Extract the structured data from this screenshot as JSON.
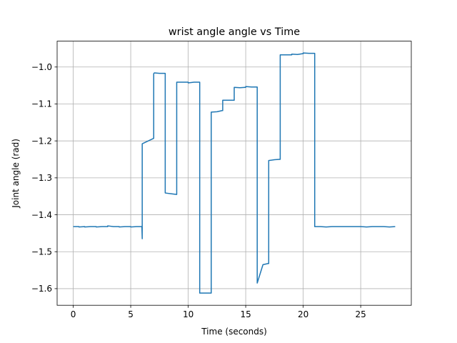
{
  "chart_data": {
    "type": "line",
    "title": "wrist angle angle vs Time",
    "xlabel": "Time (seconds)",
    "ylabel": "Joint angle (rad)",
    "xlim": [
      -1.4,
      29.4
    ],
    "ylim": [
      -1.645,
      -0.93
    ],
    "xticks": [
      0,
      5,
      10,
      15,
      20,
      25
    ],
    "xtick_labels": [
      "0",
      "5",
      "10",
      "15",
      "20",
      "25"
    ],
    "yticks": [
      -1.6,
      -1.5,
      -1.4,
      -1.3,
      -1.2,
      -1.1,
      -1.0
    ],
    "ytick_labels": [
      "−1.6",
      "−1.5",
      "−1.4",
      "−1.3",
      "−1.2",
      "−1.1",
      "−1.0"
    ],
    "grid": true,
    "line_color": "#1f77b4",
    "series": [
      {
        "x": [
          0,
          0.5,
          0.5,
          1,
          1,
          1.5,
          2,
          2,
          2.5,
          3,
          3,
          3.5,
          4,
          4,
          4.5,
          5,
          5,
          5.5,
          5.95,
          5.97,
          6.0,
          6.0,
          6.05,
          7.0,
          7.0,
          7.05,
          7.5,
          8.0,
          8.0,
          8.5,
          9.0,
          9.0,
          9.5,
          10.0,
          10.0,
          10.5,
          11.0,
          11.0,
          11.5,
          12.0,
          12.0,
          12.5,
          12.95,
          13.0,
          13.0,
          13.5,
          13.95,
          14.0,
          14.0,
          14.5,
          14.95,
          15.0,
          15.0,
          15.5,
          15.95,
          16.0,
          16.0,
          16.5,
          16.95,
          17.0,
          17.0,
          17.5,
          17.95,
          18.0,
          18.0,
          18.5,
          18.95,
          19.0,
          19.0,
          19.5,
          19.95,
          20.0,
          20.0,
          20.5,
          20.95,
          21.0,
          21.0,
          21.5,
          22,
          22.5,
          23,
          23.5,
          24,
          24.5,
          25,
          25.5,
          26,
          26.5,
          27,
          27.5,
          28
        ],
        "y": [
          -1.432,
          -1.432,
          -1.433,
          -1.432,
          -1.433,
          -1.432,
          -1.432,
          -1.433,
          -1.432,
          -1.432,
          -1.43,
          -1.432,
          -1.432,
          -1.433,
          -1.432,
          -1.432,
          -1.433,
          -1.432,
          -1.432,
          -1.432,
          -1.465,
          -1.208,
          -1.207,
          -1.193,
          -1.018,
          -1.016,
          -1.017,
          -1.017,
          -1.341,
          -1.343,
          -1.345,
          -1.041,
          -1.041,
          -1.041,
          -1.043,
          -1.041,
          -1.041,
          -1.612,
          -1.612,
          -1.612,
          -1.122,
          -1.121,
          -1.118,
          -1.118,
          -1.09,
          -1.09,
          -1.09,
          -1.09,
          -1.055,
          -1.056,
          -1.055,
          -1.055,
          -1.053,
          -1.054,
          -1.054,
          -1.054,
          -1.585,
          -1.535,
          -1.532,
          -1.532,
          -1.253,
          -1.251,
          -1.25,
          -1.25,
          -0.967,
          -0.967,
          -0.967,
          -0.967,
          -0.965,
          -0.966,
          -0.964,
          -0.964,
          -0.962,
          -0.963,
          -0.963,
          -0.963,
          -1.432,
          -1.432,
          -1.433,
          -1.432,
          -1.432,
          -1.432,
          -1.432,
          -1.432,
          -1.432,
          -1.433,
          -1.432,
          -1.432,
          -1.432,
          -1.433,
          -1.432
        ]
      }
    ]
  }
}
